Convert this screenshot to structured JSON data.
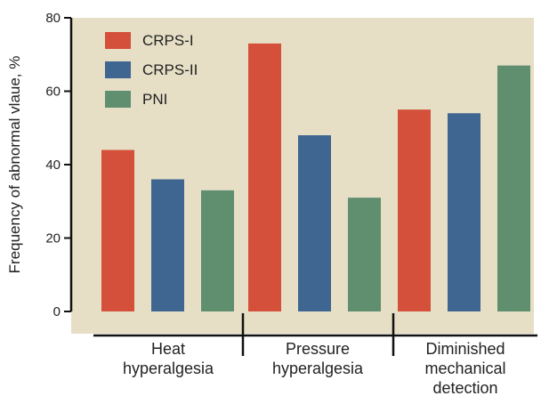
{
  "chart_data": {
    "type": "bar",
    "ylabel": "Frequency of abnormal vlaue, %",
    "ylim": [
      0,
      80
    ],
    "yticks": [
      0,
      20,
      40,
      60,
      80
    ],
    "categories": [
      [
        "Heat",
        "hyperalgesia"
      ],
      [
        "Pressure",
        "hyperalgesia"
      ],
      [
        "Diminished",
        "mechanical",
        "detection"
      ]
    ],
    "series": [
      {
        "name": "CRPS-I",
        "color": "#d4503b",
        "values": [
          44,
          73,
          55
        ]
      },
      {
        "name": "CRPS-II",
        "color": "#3e6690",
        "values": [
          36,
          48,
          54
        ]
      },
      {
        "name": "PNI",
        "color": "#5f8f6f",
        "values": [
          33,
          31,
          67
        ]
      }
    ],
    "plot_background": "#e6dfc6",
    "legend_position": "top-left",
    "grid": false
  }
}
